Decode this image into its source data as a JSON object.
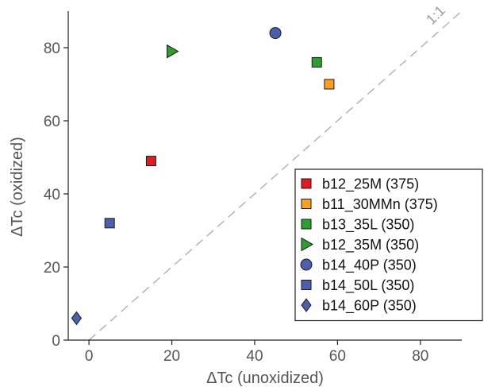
{
  "chart_data": {
    "type": "scatter",
    "title": "",
    "xlabel": "ΔTc (unoxidized)",
    "ylabel": "ΔTc (oxidized)",
    "xlim": [
      -5,
      90
    ],
    "ylim": [
      0,
      90
    ],
    "xticks": [
      "0",
      "20",
      "40",
      "60",
      "80"
    ],
    "yticks": [
      "0",
      "20",
      "40",
      "60",
      "80"
    ],
    "reference_line": {
      "label": "1:1",
      "color": "#aaaaaa"
    },
    "legend_position": "lower-right",
    "series": [
      {
        "name": "b12_25M (375)",
        "marker": "square",
        "color": "#e41a1c",
        "x": [
          15
        ],
        "y": [
          49
        ]
      },
      {
        "name": "b11_30MMn (375)",
        "marker": "square",
        "color": "#ff9f1c",
        "x": [
          58
        ],
        "y": [
          70
        ]
      },
      {
        "name": "b13_35L (350)",
        "marker": "square",
        "color": "#2ca02c",
        "x": [
          55
        ],
        "y": [
          76
        ]
      },
      {
        "name": "b12_35M (350)",
        "marker": "triangle-right",
        "color": "#2ca02c",
        "x": [
          20
        ],
        "y": [
          79
        ]
      },
      {
        "name": "b14_40P (350)",
        "marker": "circle",
        "color": "#4a5fae",
        "x": [
          45
        ],
        "y": [
          84
        ]
      },
      {
        "name": "b14_50L (350)",
        "marker": "square",
        "color": "#4a5fae",
        "x": [
          5
        ],
        "y": [
          32
        ]
      },
      {
        "name": "b14_60P (350)",
        "marker": "diamond",
        "color": "#4a5fae",
        "x": [
          -3
        ],
        "y": [
          6
        ]
      }
    ]
  }
}
